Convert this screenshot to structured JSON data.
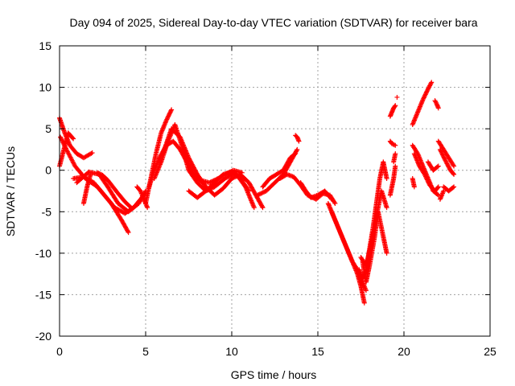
{
  "chart_data": {
    "type": "scatter",
    "title": "Day 094 of 2025, Sidereal Day-to-day VTEC variation (SDTVAR) for receiver bara",
    "xlabel": "GPS time / hours",
    "ylabel": "SDTVAR / TECUs",
    "xlim": [
      0,
      25
    ],
    "ylim": [
      -20,
      15
    ],
    "xticks": [
      0,
      5,
      10,
      15,
      20,
      25
    ],
    "yticks": [
      -20,
      -15,
      -10,
      -5,
      0,
      5,
      10,
      15
    ],
    "xtick_labels": [
      "0",
      "5",
      "10",
      "15",
      "20",
      "25"
    ],
    "ytick_labels": [
      "-20",
      "-15",
      "-10",
      "-5",
      "0",
      "5",
      "10",
      "15"
    ],
    "grid": true,
    "marker": "+",
    "series": [
      {
        "name": "SDTVAR",
        "color": "#ff0000",
        "tracks": [
          {
            "x": [
              0.0,
              0.3,
              0.6,
              1.0,
              1.4,
              1.9
            ],
            "y": [
              6.3,
              4.5,
              3.0,
              2.0,
              1.5,
              2.1
            ]
          },
          {
            "x": [
              0.0,
              0.25,
              0.5,
              0.8
            ],
            "y": [
              0.5,
              2.5,
              4.5,
              3.8
            ]
          },
          {
            "x": [
              0.05,
              0.4,
              0.9,
              1.5,
              2.2,
              3.0,
              3.6,
              4.0
            ],
            "y": [
              4.0,
              2.5,
              0.5,
              -1.0,
              -2.0,
              -4.0,
              -6.0,
              -7.5
            ]
          },
          {
            "x": [
              0.8,
              1.4,
              2.0,
              2.6,
              3.2,
              3.8,
              4.3,
              4.9
            ],
            "y": [
              -1.0,
              -0.8,
              -1.5,
              -3.0,
              -4.5,
              -5.2,
              -4.5,
              -3.0
            ]
          },
          {
            "x": [
              1.0,
              1.7,
              2.3,
              2.8,
              3.4,
              4.0,
              4.6,
              5.0
            ],
            "y": [
              -1.5,
              -0.2,
              -0.5,
              -2.0,
              -4.0,
              -5.0,
              -4.0,
              -2.5
            ]
          },
          {
            "x": [
              1.4,
              1.5,
              1.6,
              1.8
            ],
            "y": [
              -4.0,
              -3.0,
              -2.0,
              -0.5
            ]
          },
          {
            "x": [
              2.2,
              2.5,
              2.8,
              3.1,
              3.4,
              3.8,
              4.2
            ],
            "y": [
              -0.3,
              -0.6,
              -1.2,
              -2.0,
              -2.8,
              -3.8,
              -4.6
            ]
          },
          {
            "x": [
              4.5,
              4.7,
              4.9,
              5.1
            ],
            "y": [
              -2.0,
              -2.5,
              -3.5,
              -4.5
            ]
          },
          {
            "x": [
              5.0,
              5.3,
              5.6,
              5.9,
              6.2,
              6.5
            ],
            "y": [
              -4.0,
              -1.0,
              2.0,
              4.5,
              6.0,
              7.3
            ]
          },
          {
            "x": [
              5.2,
              5.5,
              5.8,
              6.2,
              6.6,
              7.0,
              7.4,
              7.8,
              8.3
            ],
            "y": [
              -2.0,
              0.0,
              1.5,
              3.0,
              3.5,
              2.5,
              1.0,
              -0.5,
              -1.5
            ]
          },
          {
            "x": [
              5.5,
              5.9,
              6.3,
              6.7,
              7.1,
              7.5,
              8.0,
              8.5,
              9.0,
              9.6,
              10.2,
              10.8,
              11.3
            ],
            "y": [
              -1.0,
              1.0,
              3.5,
              5.5,
              3.0,
              0.0,
              -1.5,
              -2.5,
              -2.0,
              -1.0,
              -0.3,
              -2.0,
              -4.5
            ]
          },
          {
            "x": [
              6.0,
              6.5,
              7.0,
              7.5,
              8.0,
              8.5,
              9.0,
              9.5,
              10.0,
              10.5,
              11.0,
              11.4,
              11.8
            ],
            "y": [
              2.0,
              5.0,
              4.0,
              1.5,
              -0.5,
              -2.0,
              -3.0,
              -2.2,
              -1.0,
              -0.5,
              -1.5,
              -3.0,
              -4.5
            ]
          },
          {
            "x": [
              7.5,
              8.0,
              8.5,
              9.0,
              9.5,
              10.0,
              10.5,
              11.0
            ],
            "y": [
              -2.5,
              -3.3,
              -2.5,
              -1.5,
              -0.5,
              -0.2,
              -1.0,
              -2.5
            ]
          },
          {
            "x": [
              8.2,
              8.7,
              9.2,
              9.7,
              10.1,
              10.6
            ],
            "y": [
              -1.2,
              -1.5,
              -1.0,
              -0.4,
              0.0,
              -0.3
            ]
          },
          {
            "x": [
              11.5,
              12.0,
              12.5,
              13.0,
              13.4,
              13.8
            ],
            "y": [
              -3.0,
              -2.5,
              -1.5,
              -0.5,
              1.0,
              2.5
            ]
          },
          {
            "x": [
              11.8,
              12.2,
              12.6,
              13.0,
              13.4,
              13.7
            ],
            "y": [
              -2.0,
              -1.0,
              -0.5,
              0.0,
              1.5,
              2.0
            ]
          },
          {
            "x": [
              13.7,
              13.8,
              13.9
            ],
            "y": [
              4.2,
              4.0,
              3.5
            ]
          },
          {
            "x": [
              12.8,
              13.2,
              13.6,
              14.0,
              14.4,
              14.9,
              15.3,
              15.7,
              16.0
            ],
            "y": [
              -1.0,
              -0.5,
              -0.8,
              -1.8,
              -3.0,
              -3.5,
              -2.8,
              -3.0,
              -4.0
            ]
          },
          {
            "x": [
              14.0,
              14.3,
              14.6,
              15.0,
              15.4,
              15.8
            ],
            "y": [
              -1.5,
              -2.5,
              -3.3,
              -3.0,
              -2.5,
              -3.5
            ]
          },
          {
            "x": [
              15.6,
              15.9,
              16.2,
              16.5,
              16.8,
              17.0,
              17.3,
              17.5,
              17.7
            ],
            "y": [
              -4.0,
              -5.5,
              -7.0,
              -8.5,
              -10.0,
              -11.0,
              -12.5,
              -14.0,
              -16.0
            ]
          },
          {
            "x": [
              15.8,
              16.1,
              16.4,
              16.7,
              17.0,
              17.3,
              17.6,
              17.8
            ],
            "y": [
              -5.0,
              -6.5,
              -8.0,
              -9.5,
              -11.0,
              -12.0,
              -13.5,
              -14.5
            ]
          },
          {
            "x": [
              17.4,
              17.6,
              17.8,
              18.0,
              18.2,
              18.4,
              18.6,
              18.8,
              19.0
            ],
            "y": [
              -12.0,
              -13.0,
              -12.0,
              -9.5,
              -7.0,
              -4.0,
              -1.0,
              1.0,
              -1.0
            ]
          },
          {
            "x": [
              17.5,
              17.8,
              18.1,
              18.4,
              18.7,
              19.0
            ],
            "y": [
              -10.5,
              -11.5,
              -9.0,
              -5.5,
              -2.5,
              -4.5
            ]
          },
          {
            "x": [
              17.6,
              17.8,
              18.0,
              18.3,
              18.5,
              18.8,
              19.0
            ],
            "y": [
              -11.0,
              -13.5,
              -11.5,
              -8.0,
              -5.0,
              -8.0,
              -10.0
            ]
          },
          {
            "x": [
              19.2,
              19.3,
              19.4,
              19.5
            ],
            "y": [
              -3.0,
              -2.0,
              -1.0,
              0.5
            ]
          },
          {
            "x": [
              19.2,
              19.3,
              19.5
            ],
            "y": [
              3.5,
              3.2,
              3.0
            ]
          },
          {
            "x": [
              19.2,
              19.3,
              19.4,
              19.5
            ],
            "y": [
              6.5,
              7.0,
              7.5,
              7.8
            ]
          },
          {
            "x": [
              19.6
            ],
            "y": [
              8.8
            ]
          },
          {
            "x": [
              19.4,
              19.5
            ],
            "y": [
              1.0,
              2.0
            ]
          },
          {
            "x": [
              20.5,
              20.8,
              21.1,
              21.4,
              21.6
            ],
            "y": [
              5.5,
              7.0,
              8.5,
              9.8,
              10.6
            ]
          },
          {
            "x": [
              21.8,
              21.9,
              22.0
            ],
            "y": [
              8.4,
              8.0,
              7.5
            ]
          },
          {
            "x": [
              20.5,
              20.8,
              21.1,
              21.4,
              21.7,
              22.0
            ],
            "y": [
              3.0,
              2.0,
              0.5,
              -1.0,
              -2.5,
              -3.0
            ]
          },
          {
            "x": [
              20.6,
              20.9,
              21.2,
              21.5,
              21.8,
              22.0
            ],
            "y": [
              2.0,
              0.5,
              -0.5,
              -1.8,
              -2.5,
              -2.0
            ]
          },
          {
            "x": [
              20.5,
              20.6
            ],
            "y": [
              -1.0,
              -2.0
            ]
          },
          {
            "x": [
              21.4,
              21.7,
              22.0
            ],
            "y": [
              1.0,
              0.0,
              0.5
            ]
          },
          {
            "x": [
              22.0,
              22.3,
              22.6,
              22.9
            ],
            "y": [
              3.5,
              2.5,
              1.5,
              0.5
            ]
          },
          {
            "x": [
              22.1,
              22.4,
              22.7,
              22.9
            ],
            "y": [
              2.5,
              1.2,
              0.0,
              -0.5
            ]
          },
          {
            "x": [
              22.3,
              22.6,
              22.9
            ],
            "y": [
              -2.0,
              -2.5,
              -2.0
            ]
          },
          {
            "x": [
              22.1,
              22.3
            ],
            "y": [
              -3.5,
              -2.5
            ]
          }
        ]
      }
    ]
  }
}
